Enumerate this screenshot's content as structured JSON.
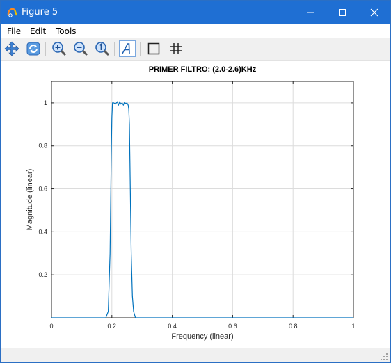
{
  "window": {
    "title": "Figure 5",
    "controls": {
      "minimize": "minimize",
      "maximize": "maximize",
      "close": "close"
    }
  },
  "menu": {
    "items": [
      "File",
      "Edit",
      "Tools"
    ]
  },
  "toolbar": {
    "buttons": [
      "pan-icon",
      "rotate-icon",
      "zoom-in-icon",
      "zoom-out-icon",
      "zoom-reset-icon",
      "text-annotation-icon",
      "box-icon",
      "grid-icon"
    ]
  },
  "colors": {
    "titlebar": "#1f6fd3",
    "line": "#0072bd",
    "grid": "#dcdcdc",
    "toolbar": "#f0f0f0"
  },
  "chart_data": {
    "type": "line",
    "title": "PRIMER FILTRO: (2.0-2.6)KHz",
    "xlabel": "Frequency (linear)",
    "ylabel": "Magnitude (linear)",
    "xlim": [
      0,
      1
    ],
    "ylim": [
      0,
      1.1
    ],
    "xticks": [
      0,
      0.2,
      0.4,
      0.6,
      0.8,
      1
    ],
    "xtick_labels": [
      "0",
      "0.2",
      "0.4",
      "0.6",
      "0.8",
      "1"
    ],
    "yticks": [
      0.2,
      0.4,
      0.6,
      0.8,
      1
    ],
    "ytick_labels": [
      "0.2",
      "0.4",
      "0.6",
      "0.8",
      "1"
    ],
    "grid": true,
    "series": [
      {
        "x": [
          0,
          0.18,
          0.188,
          0.194,
          0.198,
          0.2,
          0.202,
          0.206,
          0.212,
          0.218,
          0.222,
          0.226,
          0.23,
          0.234,
          0.238,
          0.242,
          0.246,
          0.25,
          0.254,
          0.256,
          0.258,
          0.26,
          0.262,
          0.264,
          0.268,
          0.272,
          0.278,
          1
        ],
        "y": [
          0,
          0,
          0.03,
          0.3,
          0.75,
          0.93,
          1.0,
          1.0,
          0.995,
          1.005,
          0.99,
          1.005,
          0.995,
          1.0,
          0.99,
          1.003,
          0.996,
          1.0,
          0.99,
          0.97,
          0.9,
          0.72,
          0.5,
          0.3,
          0.1,
          0.03,
          0,
          0
        ]
      }
    ]
  }
}
